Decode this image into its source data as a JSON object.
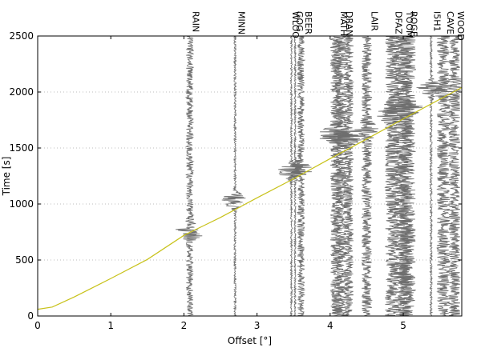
{
  "chart_data": {
    "type": "line",
    "xlabel": "Offset [°]",
    "ylabel": "Time [s]",
    "xlim": [
      0,
      5.8
    ],
    "ylim": [
      0,
      2500
    ],
    "x_ticks": [
      "0",
      "1",
      "2",
      "3",
      "4",
      "5"
    ],
    "y_ticks": [
      "0",
      "500",
      "1000",
      "1500",
      "2000",
      "2500"
    ],
    "grid": "horizontal-dotted",
    "colors": {
      "trace": "#6e6e6e",
      "travel_time_curve": "#c8c21a",
      "axis": "#000000"
    },
    "travel_time_curve": {
      "x": [
        0,
        0.2,
        0.5,
        1.0,
        1.5,
        2.0,
        2.5,
        3.0,
        3.5,
        4.0,
        4.5,
        5.0,
        5.5,
        5.8
      ],
      "y": [
        60,
        80,
        170,
        335,
        505,
        720,
        880,
        1055,
        1225,
        1405,
        1580,
        1760,
        1935,
        2040
      ]
    },
    "stations": [
      {
        "name": "RAIN",
        "offset": 2.08,
        "amp": 0.05,
        "arrival": 750,
        "burst_amp": 0.18
      },
      {
        "name": "MINN",
        "offset": 2.7,
        "amp": 0.015,
        "arrival": 1030,
        "burst_amp": 0.2
      },
      {
        "name": "WLOO",
        "offset": 3.47,
        "amp": 0.012,
        "arrival": 1290,
        "burst_amp": 0.2
      },
      {
        "name": "GOG",
        "offset": 3.52,
        "amp": 0.012,
        "arrival": 1300,
        "burst_amp": 0.15
      },
      {
        "name": "BEER",
        "offset": 3.6,
        "amp": 0.05,
        "arrival": 1310,
        "burst_amp": 0.12
      },
      {
        "name": "MATH",
        "offset": 4.08,
        "amp": 0.08,
        "arrival": 1620,
        "burst_amp": 0.2
      },
      {
        "name": "DRAN",
        "offset": 4.15,
        "amp": 0.08,
        "arrival": 1590,
        "burst_amp": 0.22
      },
      {
        "name": "DRAN",
        "offset": 4.25,
        "amp": 0.07,
        "arrival": 1610,
        "burst_amp": 0.18
      },
      {
        "name": "LAIR",
        "offset": 4.5,
        "amp": 0.07,
        "arrival": 1660,
        "burst_amp": 0.12
      },
      {
        "name": "DFAZ",
        "offset": 4.85,
        "amp": 0.1,
        "arrival": 1800,
        "burst_amp": 0.12
      },
      {
        "name": "TOOM",
        "offset": 5.0,
        "amp": 0.14,
        "arrival": 1850,
        "burst_amp": 0.12
      },
      {
        "name": "ROGE",
        "offset": 5.05,
        "amp": 0.12,
        "arrival": 1860,
        "burst_amp": 0.12
      },
      {
        "name": "I5H1",
        "offset": 5.38,
        "amp": 0.015,
        "arrival": 2030,
        "burst_amp": 0.22
      },
      {
        "name": "CAVE",
        "offset": 5.55,
        "amp": 0.09,
        "arrival": 2010,
        "burst_amp": 0.08
      },
      {
        "name": "WOOD",
        "offset": 5.7,
        "amp": 0.08,
        "arrival": 2040,
        "burst_amp": 0.06
      }
    ],
    "station_label_text": [
      "RAIN",
      "MINN",
      "WLOO",
      "GOG",
      "BEER",
      "MATH",
      "DRAN",
      "LAIR",
      "DFAZ",
      "TOOM",
      "ROGE",
      "I5H1",
      "CAVE",
      "WOOD"
    ]
  }
}
